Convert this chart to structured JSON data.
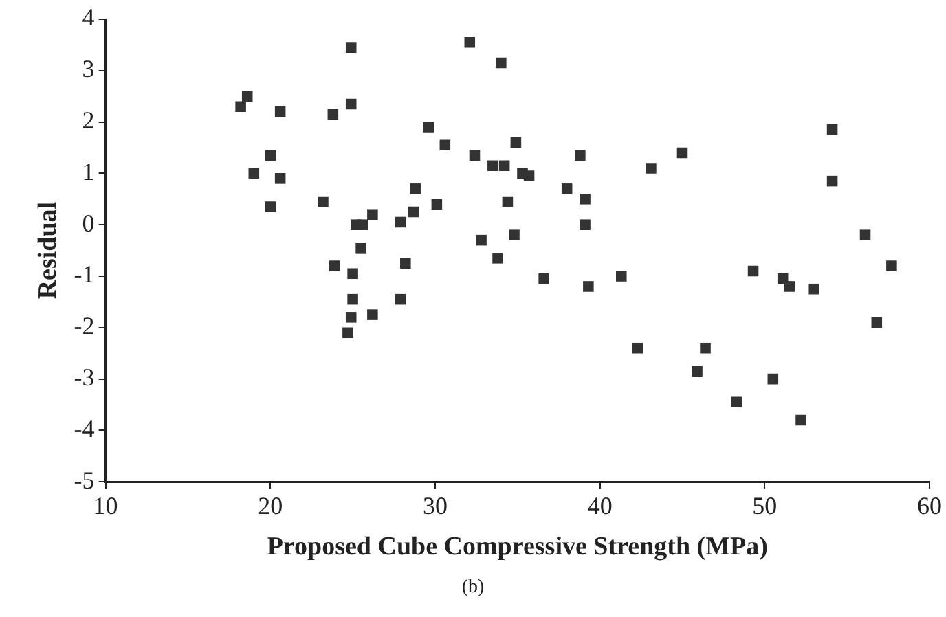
{
  "chart_data": {
    "type": "scatter",
    "xlabel": "Proposed Cube Compressive Strength (MPa)",
    "ylabel": "Residual",
    "annotations": [
      "(b)"
    ],
    "xlim": [
      10,
      60
    ],
    "xticks": [
      10,
      20,
      30,
      40,
      50,
      60
    ],
    "ylim": [
      -5,
      4
    ],
    "yticks": [
      -5,
      -4,
      -3,
      -2,
      -1,
      0,
      1,
      2,
      3,
      4
    ],
    "grid": false,
    "legend": false,
    "marker": "square",
    "series": [
      {
        "color": "#333333",
        "x": [
          18.2,
          18.6,
          19.0,
          20.0,
          20.0,
          20.6,
          20.6,
          23.2,
          23.8,
          23.9,
          24.9,
          24.9,
          25.0,
          25.2,
          25.6,
          25.5,
          25.0,
          24.9,
          24.7,
          26.2,
          26.2,
          27.9,
          27.9,
          28.2,
          28.7,
          28.8,
          29.6,
          30.1,
          30.6,
          32.1,
          32.4,
          32.8,
          33.5,
          33.8,
          34.0,
          34.2,
          34.4,
          34.8,
          34.9,
          35.3,
          35.7,
          36.6,
          38.0,
          38.8,
          39.1,
          39.1,
          39.3,
          41.3,
          42.3,
          43.1,
          45.0,
          45.9,
          46.4,
          48.3,
          49.3,
          50.5,
          51.1,
          51.5,
          52.2,
          53.0,
          54.1,
          54.1,
          56.1,
          56.8,
          57.7
        ],
        "values": [
          2.3,
          2.5,
          1.0,
          1.35,
          0.35,
          2.2,
          0.9,
          0.45,
          2.15,
          -0.8,
          2.35,
          3.45,
          -0.95,
          0.0,
          0.0,
          -0.45,
          -1.45,
          -1.8,
          -2.1,
          0.2,
          -1.75,
          -1.45,
          0.05,
          -0.75,
          0.25,
          0.7,
          1.9,
          0.4,
          1.55,
          3.55,
          1.35,
          -0.3,
          1.15,
          -0.65,
          3.15,
          1.15,
          0.45,
          -0.2,
          1.6,
          1.0,
          0.95,
          -1.05,
          0.7,
          1.35,
          0.5,
          0.0,
          -1.2,
          -1.0,
          -2.4,
          1.1,
          1.4,
          -2.85,
          -2.4,
          -3.45,
          -0.9,
          -3.0,
          -1.05,
          -1.2,
          -3.8,
          -1.25,
          1.85,
          0.85,
          -0.2,
          -1.9,
          -0.8
        ]
      }
    ]
  }
}
